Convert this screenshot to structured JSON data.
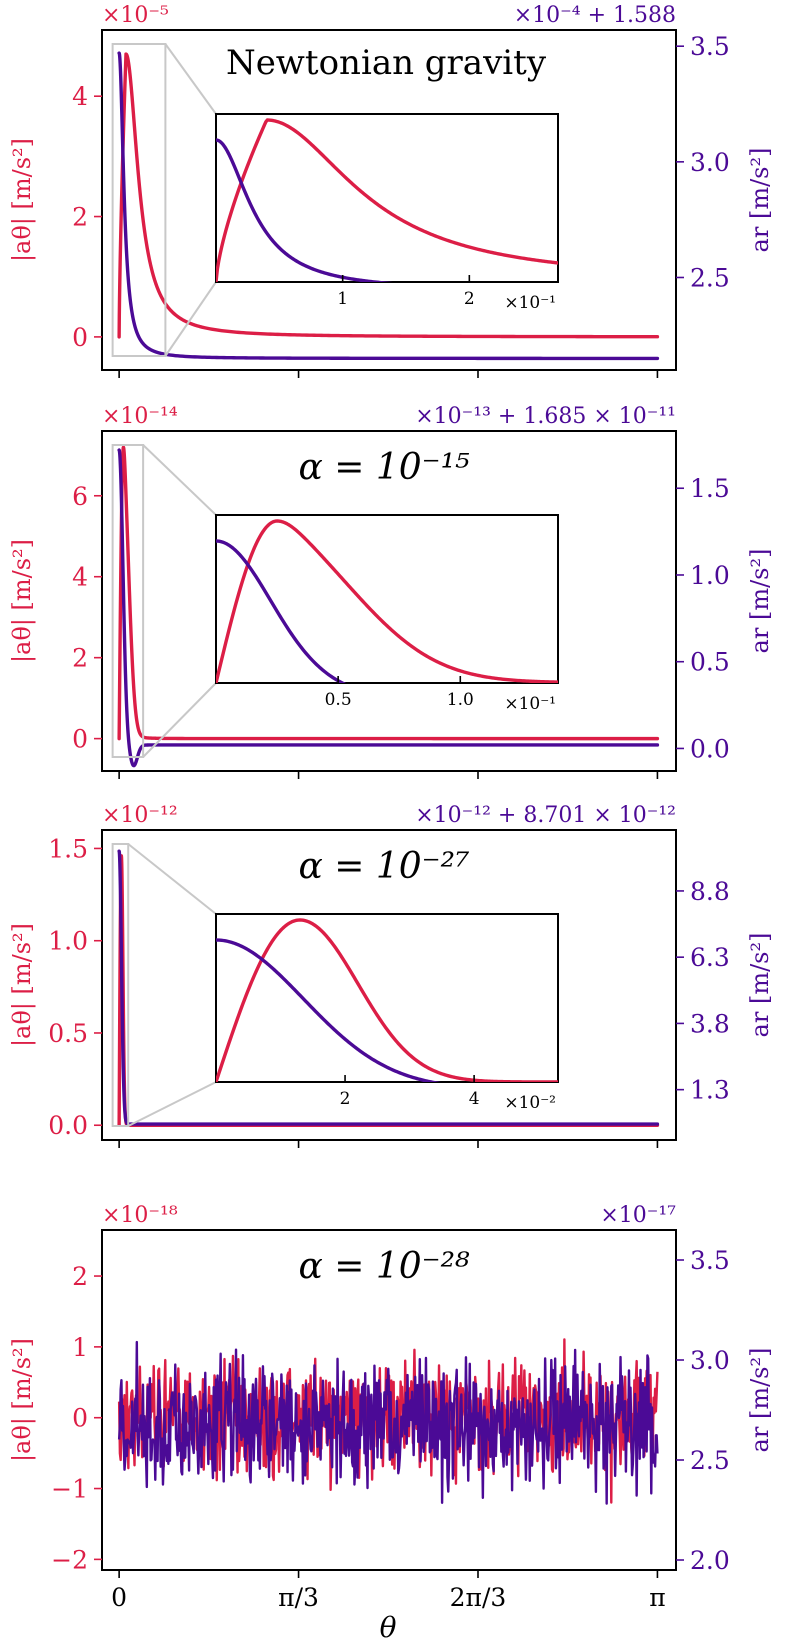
{
  "colors": {
    "left": "#dc1e46",
    "right": "#4b0a96",
    "axis": "#000000",
    "zoom": "#c8c8c8"
  },
  "chart_data": [
    {
      "type": "line",
      "title": "Newtonian gravity",
      "xlabel": "θ",
      "ylabel_left": "|aθ| [m/s²]",
      "ylabel_right": "ar [m/s²]",
      "left_multiplier": "×10⁻⁵",
      "right_multiplier": "×10⁻⁴ + 1.588",
      "left_ylim": [
        -0.55,
        5.1
      ],
      "left_ticks": [
        0,
        2,
        4
      ],
      "left_tick_labels": [
        "0",
        "2",
        "4"
      ],
      "right_ylim": [
        2.1,
        3.57
      ],
      "right_ticks": [
        2.5,
        3.0,
        3.5
      ],
      "right_tick_labels": [
        "2.5",
        "3.0",
        "3.5"
      ],
      "left_series": {
        "name": "|aθ|",
        "peak_theta": 0.04,
        "peak_value": 4.7,
        "decay_width": 0.45,
        "shape": "power"
      },
      "right_series": {
        "name": "ar",
        "start_value": 3.47,
        "end_value": 2.15,
        "decay_width": 0.03,
        "shape": "power"
      },
      "inset": {
        "x_range": [
          0,
          0.27
        ],
        "x_multiplier": "×10⁻¹",
        "x_ticks": [
          0.1,
          0.2
        ],
        "x_tick_labels": [
          "1",
          "2"
        ],
        "zoom_theta_max": 0.27
      }
    },
    {
      "type": "line",
      "title": "α = 10⁻¹⁵",
      "xlabel": "θ",
      "ylabel_left": "|aθ| [m/s²]",
      "ylabel_right": "ar [m/s²]",
      "left_multiplier": "×10⁻¹⁴",
      "right_multiplier": "×10⁻¹³ + 1.685 × 10⁻¹¹",
      "left_ylim": [
        -0.8,
        7.6
      ],
      "left_ticks": [
        0,
        2,
        4,
        6
      ],
      "left_tick_labels": [
        "0",
        "2",
        "4",
        "6"
      ],
      "right_ylim": [
        -0.13,
        1.83
      ],
      "right_ticks": [
        0.0,
        0.5,
        1.0,
        1.5
      ],
      "right_tick_labels": [
        "0.0",
        "0.5",
        "1.0",
        "1.5"
      ],
      "left_series": {
        "name": "|aθ|",
        "peak_theta": 0.025,
        "peak_value": 7.2,
        "decay_width": 0.03,
        "shape": "tail"
      },
      "right_series": {
        "name": "ar",
        "start_value": 1.72,
        "end_value": 0.02,
        "decay_width": 0.028,
        "shape": "gauss_dip"
      },
      "inset": {
        "x_range": [
          0,
          0.14
        ],
        "x_multiplier": "×10⁻¹",
        "x_ticks": [
          0.05,
          0.1
        ],
        "x_tick_labels": [
          "0.5",
          "1.0"
        ],
        "zoom_theta_max": 0.14
      }
    },
    {
      "type": "line",
      "title": "α = 10⁻²⁷",
      "xlabel": "θ",
      "ylabel_left": "|aθ| [m/s²]",
      "ylabel_right": "ar [m/s²]",
      "left_multiplier": "×10⁻¹²",
      "right_multiplier": "×10⁻¹² + 8.701 × 10⁻¹²",
      "left_ylim": [
        -0.08,
        1.6
      ],
      "left_ticks": [
        0.0,
        0.5,
        1.0,
        1.5
      ],
      "left_tick_labels": [
        "0.0",
        "0.5",
        "1.0",
        "1.5"
      ],
      "right_ylim": [
        -0.6,
        11.1
      ],
      "right_ticks": [
        1.3,
        3.8,
        6.3,
        8.8
      ],
      "right_tick_labels": [
        "1.3",
        "3.8",
        "6.3",
        "8.8"
      ],
      "left_series": {
        "name": "|aθ|",
        "peak_theta": 0.013,
        "peak_value": 1.46,
        "decay_width": 0.009,
        "shape": "gauss"
      },
      "right_series": {
        "name": "ar",
        "start_value": 10.3,
        "end_value": 0.0,
        "decay_width": 0.016,
        "shape": "gauss"
      },
      "inset": {
        "x_range": [
          0,
          0.053
        ],
        "x_multiplier": "×10⁻²",
        "x_ticks": [
          0.02,
          0.04
        ],
        "x_tick_labels": [
          "2",
          "4"
        ],
        "zoom_theta_max": 0.053
      }
    },
    {
      "type": "line",
      "title": "α = 10⁻²⁸",
      "xlabel": "θ",
      "ylabel_left": "|aθ| [m/s²]",
      "ylabel_right": "ar [m/s²]",
      "left_multiplier": "×10⁻¹⁸",
      "right_multiplier": "×10⁻¹⁷",
      "left_ylim": [
        -2.15,
        2.65
      ],
      "left_ticks": [
        -2,
        -1,
        0,
        1,
        2
      ],
      "left_tick_labels": [
        "−2",
        "−1",
        "0",
        "1",
        "2"
      ],
      "right_ylim": [
        1.95,
        3.65
      ],
      "right_ticks": [
        2.0,
        2.5,
        3.0,
        3.5
      ],
      "right_tick_labels": [
        "2.0",
        "2.5",
        "3.0",
        "3.5"
      ],
      "left_series": {
        "name": "|aθ|",
        "shape": "noise",
        "mean": 0.0,
        "spread": 0.55
      },
      "right_series": {
        "name": "ar",
        "shape": "noise",
        "mean": 2.68,
        "spread": 0.22
      }
    }
  ],
  "x_axis": {
    "range": [
      -0.1,
      3.25
    ],
    "ticks": [
      0,
      1.0472,
      2.0944,
      3.1416
    ],
    "tick_labels": [
      "0",
      "π/3",
      "2π/3",
      "π"
    ],
    "label": "θ"
  }
}
